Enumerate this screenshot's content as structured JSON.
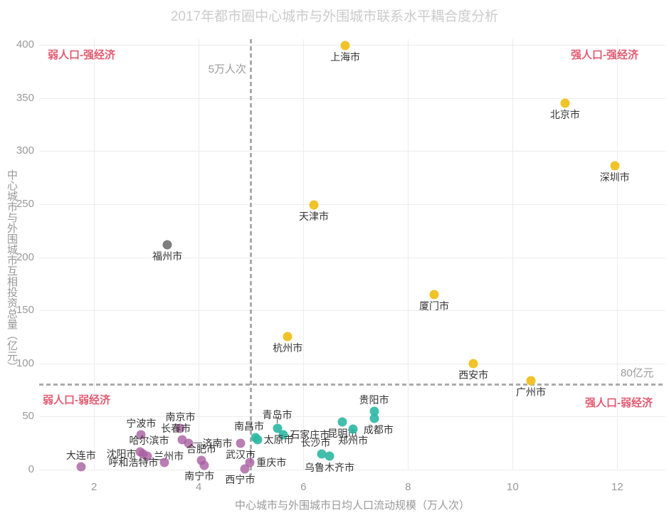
{
  "chart_data": {
    "type": "scatter",
    "title": "2017年都市圈中心城市与外围城市联系水平耦合度分析",
    "xlabel": "中心城市与外围城市日均人口流动规模（万人次）",
    "ylabel": "中心城市与外围城市互相投资总量（亿元）",
    "xlim": [
      0.95,
      12.92
    ],
    "ylim": [
      0,
      400
    ],
    "xticks": [
      2,
      4,
      6,
      8,
      10,
      12
    ],
    "yticks": [
      0,
      50,
      100,
      150,
      200,
      250,
      300,
      350,
      400
    ],
    "grid": true,
    "legend": "none",
    "reference_lines": {
      "vertical": {
        "x": 5,
        "label": "5万人次"
      },
      "horizontal": {
        "y": 80,
        "label": "80亿元"
      }
    },
    "quadrant_labels": {
      "top_left": "弱人口-强经济",
      "top_right": "强人口-强经济",
      "bottom_left": "弱人口-弱经济",
      "bottom_right": "强人口-弱经济"
    },
    "series": [
      {
        "name": "yellow",
        "color": "#f0c328",
        "opacity": 1,
        "points": [
          {
            "name": "上海市",
            "x": 6.8,
            "y": 399,
            "label_pos": "below"
          },
          {
            "name": "北京市",
            "x": 11.0,
            "y": 345,
            "label_pos": "below"
          },
          {
            "name": "深圳市",
            "x": 11.95,
            "y": 286,
            "label_pos": "below"
          },
          {
            "name": "天津市",
            "x": 6.2,
            "y": 249,
            "label_pos": "below"
          },
          {
            "name": "厦门市",
            "x": 8.5,
            "y": 165,
            "label_pos": "below"
          },
          {
            "name": "杭州市",
            "x": 5.7,
            "y": 125,
            "label_pos": "below"
          },
          {
            "name": "西安市",
            "x": 9.25,
            "y": 100,
            "label_pos": "below"
          },
          {
            "name": "广州市",
            "x": 10.35,
            "y": 84,
            "label_pos": "below"
          }
        ]
      },
      {
        "name": "gray",
        "color": "#777777",
        "opacity": 0.95,
        "points": [
          {
            "name": "福州市",
            "x": 3.4,
            "y": 212,
            "label_pos": "below"
          }
        ]
      },
      {
        "name": "teal",
        "color": "#2db7a3",
        "opacity": 0.9,
        "points": [
          {
            "name": "贵阳市",
            "x": 7.35,
            "y": 55,
            "label_pos": "above"
          },
          {
            "name": "成都市",
            "x": 7.35,
            "y": 48,
            "label_pos": "below-right"
          },
          {
            "name": "昆明市",
            "x": 6.75,
            "y": 45,
            "label_pos": "below"
          },
          {
            "name": "郑州市",
            "x": 6.95,
            "y": 38,
            "label_pos": "below"
          },
          {
            "name": "青岛市",
            "x": 5.5,
            "y": 39,
            "label_pos": "above",
            "leader": "v"
          },
          {
            "name": "石家庄市",
            "x": 5.62,
            "y": 33,
            "label_pos": "right"
          },
          {
            "name": "南昌市",
            "x": 5.08,
            "y": 30,
            "label_pos": "above-left"
          },
          {
            "name": "太原市",
            "x": 5.12,
            "y": 28,
            "label_pos": "right"
          },
          {
            "name": "长沙市",
            "x": 6.35,
            "y": 15,
            "label_pos": "above-left"
          },
          {
            "name": "乌鲁木齐市",
            "x": 6.5,
            "y": 13,
            "label_pos": "below"
          }
        ]
      },
      {
        "name": "purple",
        "color": "#a85fa0",
        "opacity": 0.8,
        "points": [
          {
            "name": "南京市",
            "x": 3.65,
            "y": 39,
            "label_pos": "above"
          },
          {
            "name": "宁波市",
            "x": 2.9,
            "y": 33,
            "label_pos": "above"
          },
          {
            "name": "长春市",
            "x": 3.68,
            "y": 28,
            "label_pos": "above-left"
          },
          {
            "name": "济南市",
            "x": 3.8,
            "y": 25,
            "label_pos": "right",
            "leader": "h"
          },
          {
            "name": "武汉市",
            "x": 4.8,
            "y": 25,
            "label_pos": "below"
          },
          {
            "name": "哈尔滨市",
            "x": 2.88,
            "y": 17,
            "label_pos": "above-right"
          },
          {
            "name": "沈阳市",
            "x": 2.93,
            "y": 15,
            "label_pos": "left"
          },
          {
            "name": "兰州市",
            "x": 3.02,
            "y": 13,
            "label_pos": "right"
          },
          {
            "name": "合肥市",
            "x": 4.05,
            "y": 9,
            "label_pos": "above"
          },
          {
            "name": "重庆市",
            "x": 4.98,
            "y": 7,
            "label_pos": "right"
          },
          {
            "name": "呼和浩特市",
            "x": 3.35,
            "y": 7,
            "label_pos": "left"
          },
          {
            "name": "南宁市",
            "x": 4.1,
            "y": 4,
            "label_pos": "below-left"
          },
          {
            "name": "西宁市",
            "x": 4.88,
            "y": 1,
            "label_pos": "below-left"
          },
          {
            "name": "大连市",
            "x": 1.75,
            "y": 3,
            "label_pos": "above"
          }
        ]
      }
    ]
  }
}
